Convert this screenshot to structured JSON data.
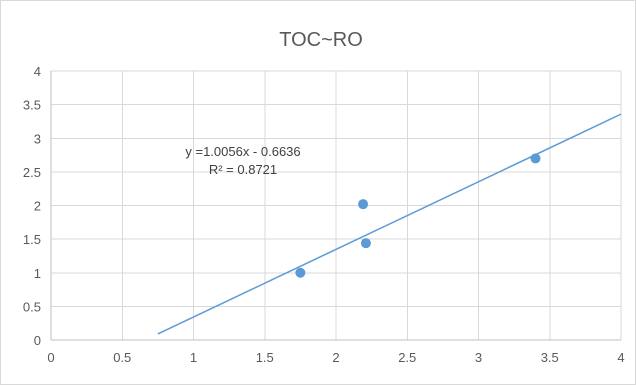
{
  "chart_data": {
    "type": "scatter",
    "title": "TOC~RO",
    "xlabel": "",
    "ylabel": "",
    "xlim": [
      0,
      4
    ],
    "ylim": [
      0,
      4
    ],
    "x_ticks": [
      "0",
      "0.5",
      "1",
      "1.5",
      "2",
      "2.5",
      "3",
      "3.5",
      "4"
    ],
    "y_ticks": [
      "0",
      "0.5",
      "1",
      "1.5",
      "2",
      "2.5",
      "3",
      "3.5",
      "4"
    ],
    "grid": true,
    "points": [
      {
        "x": 1.75,
        "y": 1.0
      },
      {
        "x": 2.19,
        "y": 2.02
      },
      {
        "x": 2.21,
        "y": 1.44
      },
      {
        "x": 3.4,
        "y": 2.7
      }
    ],
    "trendline": {
      "type": "linear",
      "slope": 1.0056,
      "intercept": -0.6636,
      "x_range": [
        0.75,
        4
      ],
      "equation_text": "y =1.0056x - 0.6636",
      "r2_text": "R² = 0.8721"
    },
    "colors": {
      "series": "#5b9bd5",
      "grid": "#d9d9d9",
      "text": "#595959"
    }
  }
}
